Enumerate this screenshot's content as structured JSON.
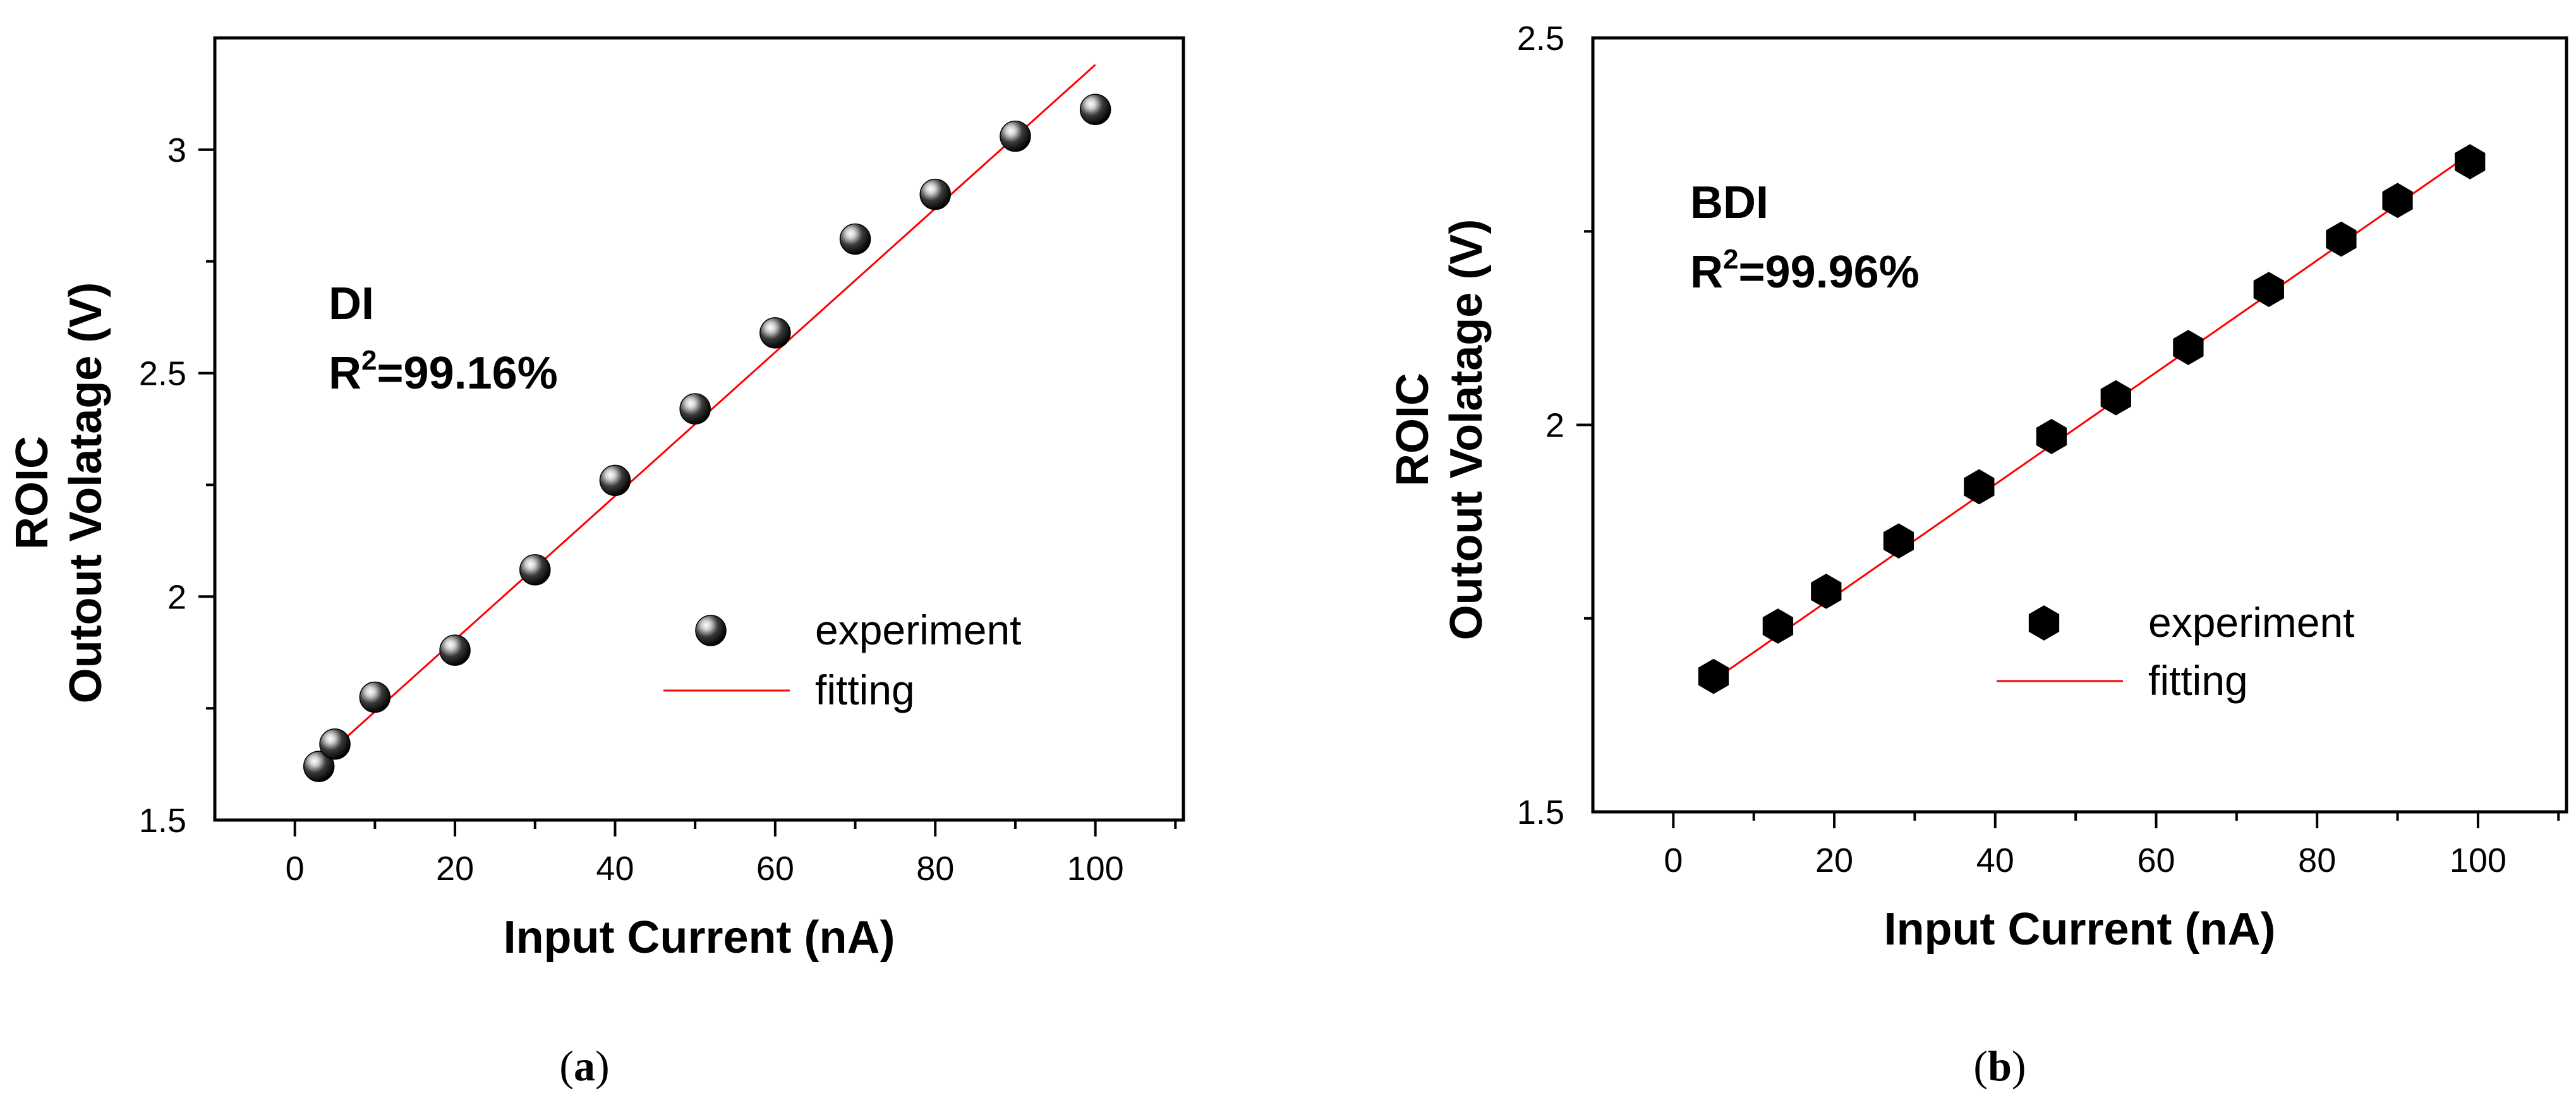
{
  "chart_data": [
    {
      "type": "scatter",
      "panel_label": "(a)",
      "panel_letter": "a",
      "annotation": "DI",
      "r2_prefix": "R",
      "r2_sup": "2",
      "r2_value": "=99.16%",
      "xlabel": "Input Current (nA)",
      "ylabel_line1": "ROIC",
      "ylabel_line2": "Outout Volatage (V)",
      "xlim": [
        -10,
        111
      ],
      "ylim": [
        1.5,
        3.25
      ],
      "xticks": [
        0,
        20,
        40,
        60,
        80,
        100
      ],
      "xtick_labels": [
        "0",
        "20",
        "40",
        "60",
        "80",
        "100"
      ],
      "yticks": [
        1.5,
        2,
        2.5,
        3
      ],
      "ytick_labels": [
        "1.5",
        "2",
        "2.5",
        "3"
      ],
      "series": [
        {
          "name": "experiment",
          "kind": "points",
          "marker": "sphere",
          "x": [
            3,
            5,
            10,
            20,
            30,
            40,
            50,
            60,
            70,
            80,
            90,
            100
          ],
          "y": [
            1.62,
            1.67,
            1.775,
            1.88,
            2.06,
            2.26,
            2.42,
            2.59,
            2.8,
            2.9,
            3.03,
            3.09
          ]
        },
        {
          "name": "fitting",
          "kind": "line",
          "color": "#ff0000",
          "x": [
            3,
            100
          ],
          "y": [
            1.63,
            3.19
          ]
        }
      ]
    },
    {
      "type": "scatter",
      "panel_label": "(b)",
      "panel_letter": "b",
      "annotation": "BDI",
      "r2_prefix": "R",
      "r2_sup": "2",
      "r2_value": "=99.96%",
      "xlabel": "Input Current (nA)",
      "ylabel_line1": "ROIC",
      "ylabel_line2": "Outout Volatage (V)",
      "xlim": [
        -10,
        111
      ],
      "ylim": [
        1.5,
        2.5
      ],
      "xticks": [
        0,
        20,
        40,
        60,
        80,
        100
      ],
      "xtick_labels": [
        "0",
        "20",
        "40",
        "60",
        "80",
        "100"
      ],
      "yticks": [
        1.5,
        2,
        2.5
      ],
      "ytick_labels": [
        "1.5",
        "2",
        "2.5"
      ],
      "series": [
        {
          "name": "experiment",
          "kind": "points",
          "marker": "hexagon",
          "x": [
            5,
            13,
            19,
            28,
            38,
            47,
            55,
            64,
            74,
            83,
            90,
            99
          ],
          "y": [
            1.675,
            1.74,
            1.785,
            1.85,
            1.92,
            1.985,
            2.035,
            2.1,
            2.175,
            2.24,
            2.29,
            2.34
          ]
        },
        {
          "name": "fitting",
          "kind": "line",
          "color": "#ff0000",
          "x": [
            5,
            99
          ],
          "y": [
            1.67,
            2.35
          ]
        }
      ]
    }
  ]
}
